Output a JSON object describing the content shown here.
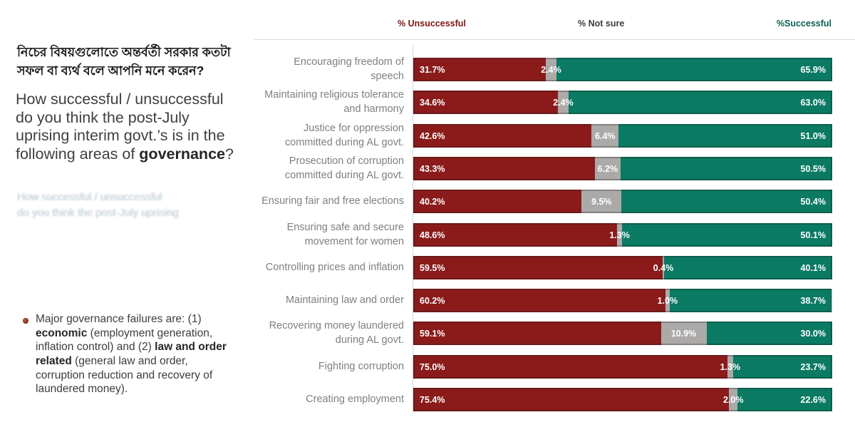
{
  "left_panel": {
    "question_bn": "নিচের বিষয়গুলোতে অন্তর্বর্তী সরকার কতটা সফল বা ব্যর্থ বলে আপনি মনে করেন?",
    "question_en": {
      "prefix": "How successful / unsuccessful do you think the post-July uprising interim govt.’s is in the following areas of ",
      "bold": "governance",
      "suffix": "?"
    },
    "ghost_lines": [
      "How successful / unsuccessful",
      "do you think the post-July uprising"
    ],
    "note": {
      "segments": [
        {
          "text": "Major governance failures are: (1) ",
          "bold": false
        },
        {
          "text": "economic",
          "bold": true
        },
        {
          "text": " (employment generation, inflation control) and (2) ",
          "bold": false
        },
        {
          "text": "law and order related",
          "bold": true
        },
        {
          "text": " (general law and order, corruption reduction and recovery of laundered money).",
          "bold": false
        }
      ]
    }
  },
  "chart_data": {
    "type": "bar",
    "orientation": "horizontal",
    "stacked": true,
    "xlim": [
      0,
      100
    ],
    "legend_position": "top",
    "value_format": "0.0%",
    "categories": [
      "Encouraging freedom of speech",
      "Maintaining religious tolerance and harmony",
      "Justice for oppression committed during AL govt.",
      "Prosecution of corruption committed during AL govt.",
      "Ensuring fair and free elections",
      "Ensuring safe and secure movement for women",
      "Controlling prices and inflation",
      "Maintaining law and order",
      "Recovering money laundered during AL govt.",
      "Fighting corruption",
      "Creating employment"
    ],
    "category_lines": [
      [
        "Encouraging freedom of",
        "speech"
      ],
      [
        "Maintaining religious tolerance",
        "and harmony"
      ],
      [
        "Justice for oppression",
        "committed during AL govt."
      ],
      [
        "Prosecution of corruption",
        "committed during AL govt."
      ],
      [
        "Ensuring fair and free elections"
      ],
      [
        "Ensuring safe and secure",
        "movement for women"
      ],
      [
        "Controlling prices and inflation"
      ],
      [
        "Maintaining law and order"
      ],
      [
        "Recovering money laundered",
        "during AL govt."
      ],
      [
        "Fighting corruption"
      ],
      [
        "Creating employment"
      ]
    ],
    "series": [
      {
        "name": "% Unsuccessful",
        "color": "#8b1b1b",
        "values": [
          31.7,
          34.6,
          42.6,
          43.3,
          40.2,
          48.6,
          59.5,
          60.2,
          59.1,
          75.0,
          75.4
        ]
      },
      {
        "name": "% Not sure",
        "color": "#aca9a9",
        "values": [
          2.4,
          2.4,
          6.4,
          6.2,
          9.5,
          1.3,
          0.4,
          1.0,
          10.9,
          1.3,
          2.0
        ]
      },
      {
        "name": "%Successful",
        "color": "#0b7a63",
        "values": [
          65.9,
          63.0,
          51.0,
          50.5,
          50.4,
          50.1,
          40.1,
          38.7,
          30.0,
          23.7,
          22.6
        ]
      }
    ]
  },
  "colors": {
    "unsuccessful": "#8b1b1b",
    "not_sure": "#aca9a9",
    "successful": "#0b7a63",
    "legend_unsuccessful_text": "#7d1414",
    "legend_notsure_text": "#3c3c3c",
    "legend_successful_text": "#0a6150",
    "category_label_text": "#7f7f7f"
  }
}
